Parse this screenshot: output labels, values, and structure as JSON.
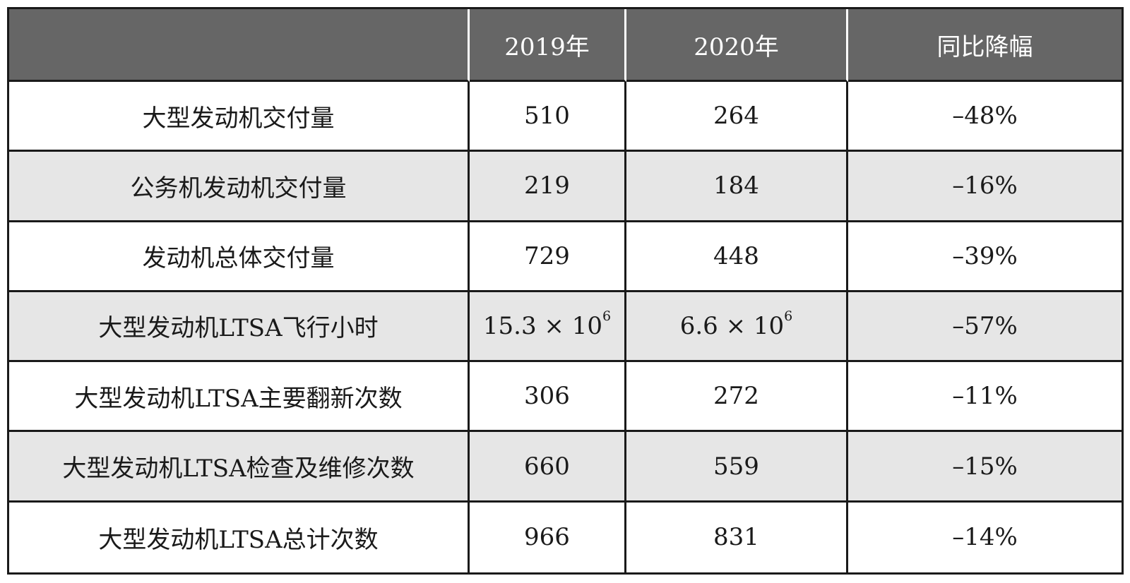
{
  "header": [
    "",
    "2019年",
    "2020年",
    "同比降幅"
  ],
  "rows": [
    {
      "label": "大型发动机交付量",
      "y2019": "510",
      "y2020": "264",
      "change": "–48%"
    },
    {
      "label": "公务机发动机交付量",
      "y2019": "219",
      "y2020": "184",
      "change": "–16%"
    },
    {
      "label": "发动机总体交付量",
      "y2019": "729",
      "y2020": "448",
      "change": "–39%"
    },
    {
      "label": "大型发动机LTSA飞行小时",
      "y2019": "15.3 × 10",
      "y2019_exp": "6",
      "y2020": "6.6 × 10",
      "y2020_exp": "6",
      "change": "–57%"
    },
    {
      "label": "大型发动机LTSA主要翻新次数",
      "y2019": "306",
      "y2020": "272",
      "change": "–11%"
    },
    {
      "label": "大型发动机LTSA检查及维修次数",
      "y2019": "660",
      "y2020": "559",
      "change": "–15%"
    },
    {
      "label": "大型发动机LTSA总计次数",
      "y2019": "966",
      "y2020": "831",
      "change": "–14%"
    }
  ],
  "colors": {
    "header_bg": "#666666",
    "header_text": "#ffffff",
    "shaded_row_bg": "#e6e6e6",
    "border": "#1a1a1a"
  }
}
